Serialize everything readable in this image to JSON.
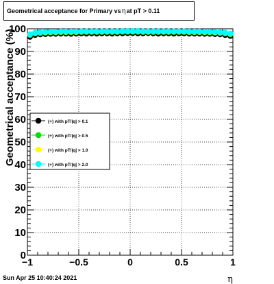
{
  "title": {
    "prefix": "Geometrical acceptance for Primary vs",
    "symbol": "η",
    "suffix": "at pT > 0.11"
  },
  "footer": {
    "timestamp": "Sun Apr 25 10:40:24 2021"
  },
  "colors": {
    "series": [
      "#000000",
      "#00dd00",
      "#ffff00",
      "#00ffff"
    ],
    "frame": "#000000",
    "grid": "#000000"
  },
  "chart_data": {
    "type": "scatter",
    "xlabel": "η",
    "ylabel": "Geometrical acceptance (%)",
    "xlim": [
      -1,
      1
    ],
    "ylim": [
      0,
      100
    ],
    "x_ticks": [
      -1,
      -0.5,
      0,
      0.5,
      1
    ],
    "x_tick_labels": [
      "−1",
      "−0.5",
      "0",
      "0.5",
      "1"
    ],
    "y_ticks": [
      0,
      10,
      20,
      30,
      40,
      50,
      60,
      70,
      80,
      90,
      100
    ],
    "y_tick_labels": [
      "0",
      "10",
      "20",
      "30",
      "40",
      "50",
      "60",
      "70",
      "80",
      "90",
      "100"
    ],
    "grid": true,
    "legend_position": "left",
    "x": [
      -0.975,
      -0.925,
      -0.875,
      -0.825,
      -0.775,
      -0.725,
      -0.675,
      -0.625,
      -0.575,
      -0.525,
      -0.475,
      -0.425,
      -0.375,
      -0.325,
      -0.275,
      -0.225,
      -0.175,
      -0.125,
      -0.075,
      -0.025,
      0.025,
      0.075,
      0.125,
      0.175,
      0.225,
      0.275,
      0.325,
      0.375,
      0.425,
      0.475,
      0.525,
      0.575,
      0.625,
      0.675,
      0.725,
      0.775,
      0.825,
      0.875,
      0.925,
      0.975
    ],
    "series": [
      {
        "name": "(+) with pT/|q| > 0.1",
        "values": [
          96.5,
          97.3,
          97.6,
          97.7,
          97.8,
          97.8,
          97.9,
          97.9,
          97.8,
          97.9,
          98.0,
          97.9,
          98.0,
          97.9,
          98.0,
          98.0,
          97.9,
          98.0,
          98.0,
          98.1,
          98.1,
          98.0,
          98.0,
          98.1,
          98.0,
          97.9,
          98.0,
          98.0,
          97.9,
          98.0,
          98.0,
          97.9,
          97.9,
          97.9,
          97.8,
          97.8,
          97.7,
          97.6,
          97.3,
          96.9
        ]
      },
      {
        "name": "(+) with pT/|q| > 0.5",
        "values": [
          97.3,
          98.0,
          98.2,
          98.3,
          98.4,
          98.4,
          98.5,
          98.5,
          98.5,
          98.5,
          98.6,
          98.6,
          98.6,
          98.6,
          98.6,
          98.6,
          98.6,
          98.6,
          98.7,
          98.7,
          98.7,
          98.7,
          98.6,
          98.6,
          98.6,
          98.6,
          98.6,
          98.6,
          98.6,
          98.6,
          98.6,
          98.5,
          98.5,
          98.5,
          98.4,
          98.4,
          98.3,
          98.2,
          98.0,
          97.6
        ]
      },
      {
        "name": "(+) with pT/|q| > 1.0",
        "values": [
          97.5,
          98.2,
          98.4,
          98.5,
          98.6,
          98.6,
          98.7,
          98.7,
          98.7,
          98.7,
          98.8,
          98.8,
          98.8,
          98.8,
          98.8,
          98.8,
          98.8,
          98.8,
          98.9,
          98.9,
          98.9,
          98.9,
          98.8,
          98.8,
          98.8,
          98.8,
          98.8,
          98.8,
          98.8,
          98.8,
          98.8,
          98.7,
          98.7,
          98.7,
          98.6,
          98.6,
          98.5,
          98.4,
          98.2,
          97.8
        ]
      },
      {
        "name": "(+) with pT/|q| > 2.0",
        "values": [
          97.6,
          98.3,
          98.5,
          98.6,
          98.7,
          98.7,
          98.8,
          98.8,
          98.8,
          98.8,
          98.9,
          98.9,
          98.9,
          98.9,
          98.9,
          98.9,
          98.9,
          98.9,
          99.0,
          99.0,
          99.0,
          99.0,
          98.9,
          98.9,
          98.9,
          98.9,
          98.9,
          98.9,
          98.9,
          98.9,
          98.9,
          98.8,
          98.8,
          98.8,
          98.7,
          98.7,
          98.6,
          98.5,
          98.3,
          97.9
        ]
      }
    ]
  }
}
